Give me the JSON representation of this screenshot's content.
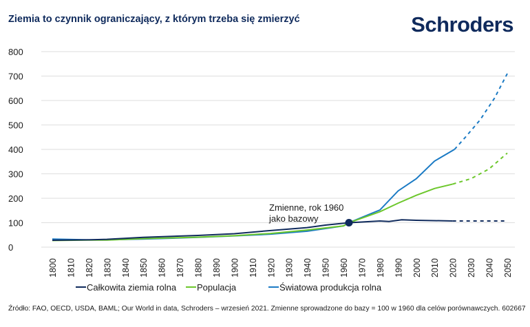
{
  "header": {
    "title": "Ziemia to czynnik ograniczający, z którym trzeba się zmierzyć",
    "logo": "Schroders"
  },
  "footer": {
    "source": "Źródło: FAO, OECD, USDA, BAML; Our World in data, Schroders – wrzesień 2021. Zmienne sprowadzone do bazy = 100 w 1960 dla celów porównawczych. 602667"
  },
  "chart_data": {
    "type": "line",
    "title": "Ziemia to czynnik ograniczający, z którym trzeba się zmierzyć",
    "xlabel": "",
    "ylabel": "",
    "xlim": [
      1800,
      2050
    ],
    "ylim": [
      0,
      800
    ],
    "xticks": [
      "1800",
      "1810",
      "1820",
      "1830",
      "1840",
      "1850",
      "1860",
      "1870",
      "1880",
      "1890",
      "1900",
      "1910",
      "1920",
      "1930",
      "1940",
      "1950",
      "1960",
      "1970",
      "1980",
      "1990",
      "2000",
      "2010",
      "2020",
      "2030",
      "2040",
      "2050"
    ],
    "yticks": [
      "0",
      "100",
      "200",
      "300",
      "400",
      "500",
      "600",
      "700",
      "800"
    ],
    "grid": true,
    "legend": "bottom",
    "annotation": {
      "line1": "Zmienne, rok 1960",
      "line2": "jako bazowy",
      "x": 1963,
      "y": 100
    },
    "series": [
      {
        "name": "Całkowita ziemia rolna",
        "color": "#0f2a5c",
        "values": [
          [
            1800,
            28
          ],
          [
            1820,
            30
          ],
          [
            1830,
            32
          ],
          [
            1850,
            40
          ],
          [
            1880,
            48
          ],
          [
            1900,
            55
          ],
          [
            1920,
            68
          ],
          [
            1940,
            80
          ],
          [
            1950,
            90
          ],
          [
            1963,
            100
          ],
          [
            1980,
            107
          ],
          [
            1985,
            105
          ],
          [
            1992,
            112
          ],
          [
            2000,
            110
          ],
          [
            2020,
            107
          ]
        ],
        "projection": [
          [
            2020,
            107
          ],
          [
            2050,
            107
          ]
        ]
      },
      {
        "name": "Populacja",
        "color": "#6cc72b",
        "values": [
          [
            1800,
            27
          ],
          [
            1820,
            29
          ],
          [
            1830,
            29
          ],
          [
            1850,
            35
          ],
          [
            1880,
            41
          ],
          [
            1900,
            47
          ],
          [
            1920,
            56
          ],
          [
            1940,
            70
          ],
          [
            1960,
            87
          ],
          [
            1963,
            100
          ],
          [
            1980,
            145
          ],
          [
            1990,
            180
          ],
          [
            2000,
            212
          ],
          [
            2010,
            240
          ],
          [
            2020,
            258
          ]
        ],
        "projection": [
          [
            2020,
            258
          ],
          [
            2030,
            280
          ],
          [
            2040,
            320
          ],
          [
            2050,
            385
          ]
        ]
      },
      {
        "name": "Światowa produkcja rolna",
        "color": "#1a7ac4",
        "values": [
          [
            1800,
            33
          ],
          [
            1820,
            30
          ],
          [
            1830,
            30
          ],
          [
            1850,
            33
          ],
          [
            1880,
            40
          ],
          [
            1900,
            46
          ],
          [
            1920,
            53
          ],
          [
            1940,
            65
          ],
          [
            1960,
            87
          ],
          [
            1963,
            100
          ],
          [
            1975,
            137
          ],
          [
            1980,
            152
          ],
          [
            1990,
            230
          ],
          [
            2000,
            280
          ],
          [
            2010,
            352
          ],
          [
            2021,
            400
          ]
        ],
        "projection": [
          [
            2021,
            400
          ],
          [
            2027,
            450
          ],
          [
            2035,
            520
          ],
          [
            2043,
            610
          ],
          [
            2050,
            710
          ]
        ]
      }
    ]
  }
}
